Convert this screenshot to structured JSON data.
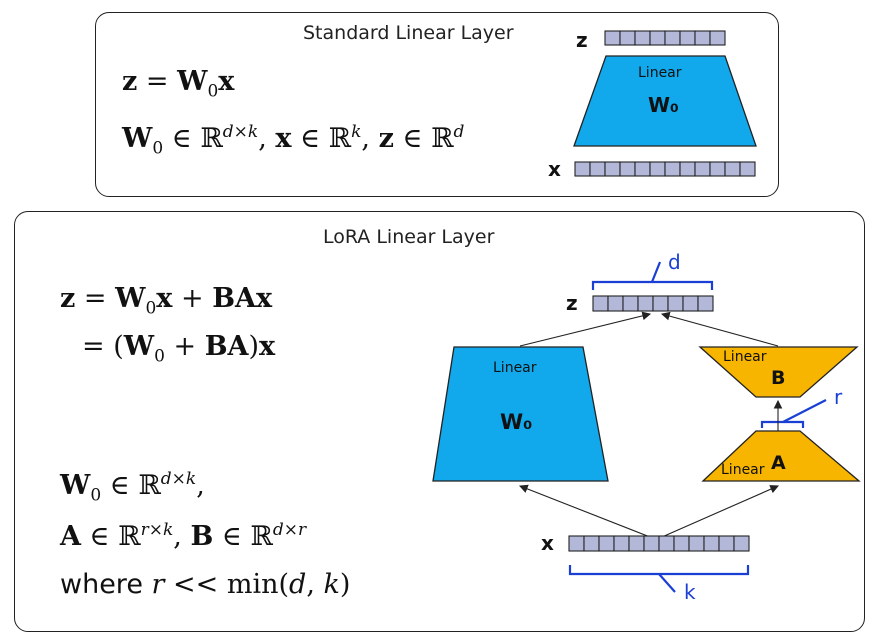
{
  "standard": {
    "title": "Standard Linear Layer",
    "eq_line1": "z = W₀x",
    "eq_line2": "W₀ ∈ ℝ^{d×k}, x ∈ ℝ^k, z ∈ ℝ^d",
    "z_label": "z",
    "x_label": "x",
    "layer_label": "Linear",
    "weight_label": "W₀"
  },
  "lora": {
    "title": "LoRA Linear Layer",
    "eq_line1": "z = W₀x + BAx",
    "eq_line2": "= (W₀ + BA)x",
    "eq_line3": "W₀ ∈ ℝ^{d×k},",
    "eq_line4": "A ∈ ℝ^{r×k}, B ∈ ℝ^{d×r}",
    "eq_line5": "where r << min(d, k)",
    "z_label": "z",
    "x_label": "x",
    "w0_layer_label": "Linear",
    "w0_weight_label": "W₀",
    "b_layer_label": "Linear",
    "b_weight_label": "B",
    "a_layer_label": "Linear",
    "a_weight_label": "A",
    "d_label": "d",
    "r_label": "r",
    "k_label": "k"
  },
  "colors": {
    "w0_fill": "#11a8ec",
    "lora_fill": "#f7b500",
    "vector_fill": "#b3b8d9",
    "annotation": "#1a3fd4"
  }
}
